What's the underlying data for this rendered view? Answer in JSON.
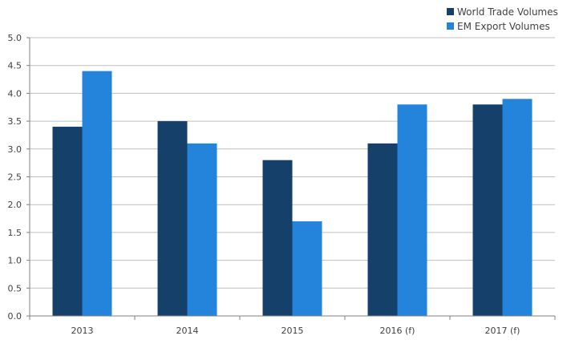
{
  "chart_data": {
    "type": "bar",
    "title": "",
    "xlabel": "",
    "ylabel": "",
    "categories": [
      "2013",
      "2014",
      "2015",
      "2016 (f)",
      "2017 (f)"
    ],
    "series": [
      {
        "name": "World Trade Volumes",
        "color": "#14406a",
        "values": [
          3.4,
          3.5,
          2.8,
          3.1,
          3.8
        ]
      },
      {
        "name": "EM Export Volumes",
        "color": "#2484dc",
        "values": [
          4.4,
          3.1,
          1.7,
          3.8,
          3.9
        ]
      }
    ],
    "ylim": [
      0,
      5.0
    ],
    "yticks": [
      "0.0",
      "0.5",
      "1.0",
      "1.5",
      "2.0",
      "2.5",
      "3.0",
      "3.5",
      "4.0",
      "4.5",
      "5.0"
    ],
    "grid": true,
    "legend_position": "top-right"
  }
}
